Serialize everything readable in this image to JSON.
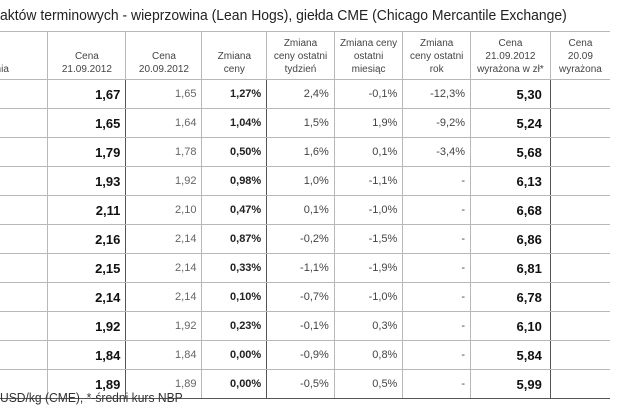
{
  "title": "aktów terminowych - wieprzowina (Lean Hogs), giełda CME (Chicago Mercantile Exchange)",
  "headers": [
    "ania",
    "Cena 21.09.2012",
    "Cena 20.09.2012",
    "Zmiana ceny",
    "Zmiana ceny ostatni tydzień",
    "Zmiana ceny ostatni miesiąc",
    "Zmiana ceny ostatni rok",
    "Cena 21.09.2012 wyrażona w zł*",
    "Cena 20.09 wyrażona"
  ],
  "rows": [
    {
      "price_21": "1,67",
      "price_20": "1,65",
      "change": "1,27%",
      "week": "2,4%",
      "month": "-0,1%",
      "year": "-12,3%",
      "pln": "5,30"
    },
    {
      "price_21": "1,65",
      "price_20": "1,64",
      "change": "1,04%",
      "week": "1,5%",
      "month": "1,9%",
      "year": "-9,2%",
      "pln": "5,24"
    },
    {
      "price_21": "1,79",
      "price_20": "1,78",
      "change": "0,50%",
      "week": "1,6%",
      "month": "0,1%",
      "year": "-3,4%",
      "pln": "5,68"
    },
    {
      "price_21": "1,93",
      "price_20": "1,92",
      "change": "0,98%",
      "week": "1,0%",
      "month": "-1,1%",
      "year": "-",
      "pln": "6,13"
    },
    {
      "price_21": "2,11",
      "price_20": "2,10",
      "change": "0,47%",
      "week": "0,1%",
      "month": "-1,0%",
      "year": "-",
      "pln": "6,68"
    },
    {
      "price_21": "2,16",
      "price_20": "2,14",
      "change": "0,87%",
      "week": "-0,2%",
      "month": "-1,5%",
      "year": "-",
      "pln": "6,86"
    },
    {
      "price_21": "2,15",
      "price_20": "2,14",
      "change": "0,33%",
      "week": "-1,1%",
      "month": "-1,9%",
      "year": "-",
      "pln": "6,81"
    },
    {
      "price_21": "2,14",
      "price_20": "2,14",
      "change": "0,10%",
      "week": "-0,7%",
      "month": "-1,0%",
      "year": "-",
      "pln": "6,78"
    },
    {
      "price_21": "1,92",
      "price_20": "1,92",
      "change": "0,23%",
      "week": "-0,1%",
      "month": "0,3%",
      "year": "-",
      "pln": "6,10"
    },
    {
      "price_21": "1,84",
      "price_20": "1,84",
      "change": "0,00%",
      "week": "-0,9%",
      "month": "0,8%",
      "year": "-",
      "pln": "5,84"
    },
    {
      "price_21": "1,89",
      "price_20": "1,89",
      "change": "0,00%",
      "week": "-0,5%",
      "month": "0,5%",
      "year": "-",
      "pln": "5,99"
    }
  ],
  "footnote": "USD/kg (CME), *-średni kurs NBP"
}
